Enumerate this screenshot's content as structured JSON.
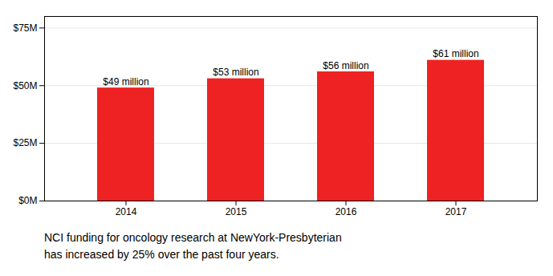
{
  "chart_data": {
    "type": "bar",
    "categories": [
      "2014",
      "2015",
      "2016",
      "2017"
    ],
    "values": [
      49,
      53,
      56,
      61
    ],
    "value_labels": [
      "$49 million",
      "$53 million",
      "$56 million",
      "$61 million"
    ],
    "data_labels": true,
    "color": "#ee2222",
    "ylim": [
      0,
      80
    ],
    "yticks": [
      {
        "value": 0,
        "label": "$0M"
      },
      {
        "value": 25,
        "label": "$25M"
      },
      {
        "value": 50,
        "label": "$50M"
      },
      {
        "value": 75,
        "label": "$75M"
      }
    ],
    "grid": true,
    "caption": "NCI funding for oncology research at NewYork-Presbyterian\nhas increased by 25% over the past four years."
  }
}
